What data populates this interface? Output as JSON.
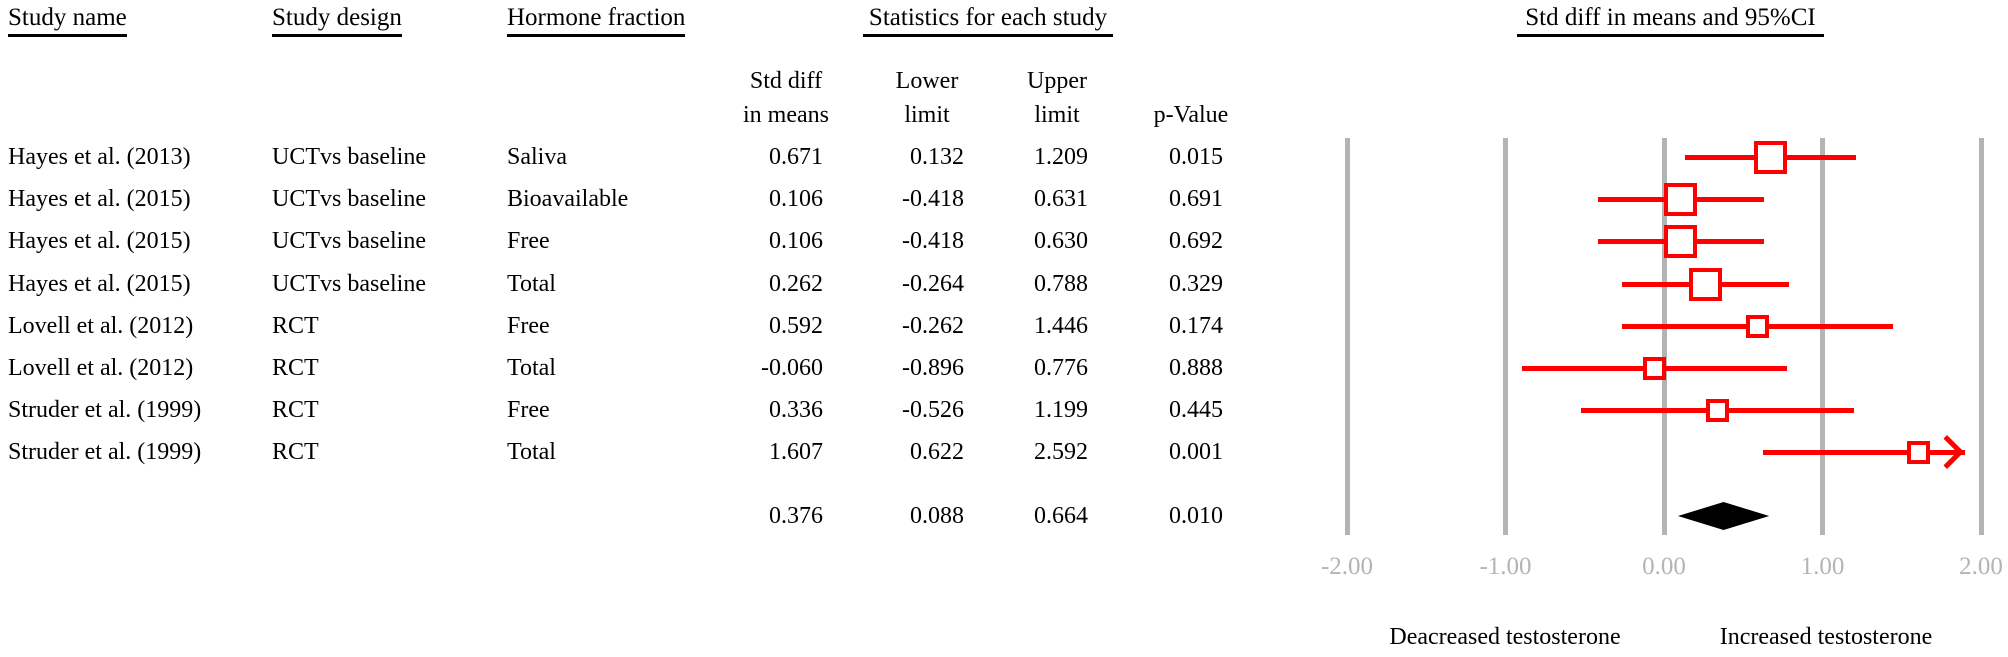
{
  "table": {
    "col_headers": {
      "study_name": "Study name",
      "study_design": "Study design",
      "hormone_fraction": "Hormone fraction",
      "statistics_group": "Statistics for each study"
    },
    "stat_headers": {
      "std_diff": "Std diff\nin means",
      "lower": "Lower\nlimit",
      "upper": "Upper\nlimit",
      "p_value": "p-Value"
    }
  },
  "chart_data": {
    "type": "forest",
    "title": "Std diff in means and 95%CI",
    "axis": {
      "min": -2,
      "max": 2,
      "ticks": [
        {
          "value": -2,
          "label": "-2.00"
        },
        {
          "value": -1,
          "label": "-1.00"
        },
        {
          "value": 0,
          "label": "0.00"
        },
        {
          "value": 1,
          "label": "1.00"
        },
        {
          "value": 2,
          "label": "2.00"
        }
      ]
    },
    "rows": [
      {
        "name": "Hayes et al. (2013)",
        "design": "UCTvs baseline",
        "fraction": "Saliva",
        "std_diff": "0.671",
        "lower": "0.132",
        "upper": "1.209",
        "p": "0.015",
        "weight": "large"
      },
      {
        "name": "Hayes et al. (2015)",
        "design": "UCTvs baseline",
        "fraction": "Bioavailable",
        "std_diff": "0.106",
        "lower": "-0.418",
        "upper": "0.631",
        "p": "0.691",
        "weight": "large"
      },
      {
        "name": "Hayes et al. (2015)",
        "design": "UCTvs baseline",
        "fraction": "Free",
        "std_diff": "0.106",
        "lower": "-0.418",
        "upper": "0.630",
        "p": "0.692",
        "weight": "large"
      },
      {
        "name": "Hayes et al. (2015)",
        "design": "UCTvs baseline",
        "fraction": "Total",
        "std_diff": "0.262",
        "lower": "-0.264",
        "upper": "0.788",
        "p": "0.329",
        "weight": "large"
      },
      {
        "name": "Lovell et al. (2012)",
        "design": "RCT",
        "fraction": "Free",
        "std_diff": "0.592",
        "lower": "-0.262",
        "upper": "1.446",
        "p": "0.174",
        "weight": "small"
      },
      {
        "name": "Lovell et al. (2012)",
        "design": "RCT",
        "fraction": "Total",
        "std_diff": "-0.060",
        "lower": "-0.896",
        "upper": "0.776",
        "p": "0.888",
        "weight": "small"
      },
      {
        "name": "Struder et al. (1999)",
        "design": "RCT",
        "fraction": "Free",
        "std_diff": "0.336",
        "lower": "-0.526",
        "upper": "1.199",
        "p": "0.445",
        "weight": "small"
      },
      {
        "name": "Struder et al. (1999)",
        "design": "RCT",
        "fraction": "Total",
        "std_diff": "1.607",
        "lower": "0.622",
        "upper": "2.592",
        "p": "0.001",
        "weight": "small"
      }
    ],
    "summary": {
      "std_diff": "0.376",
      "lower": "0.088",
      "upper": "0.664",
      "p": "0.010"
    },
    "footer": {
      "decreased": "Deacreased testosterone",
      "increased": "Increased testosterone"
    },
    "colors": {
      "marker": "#ff0000",
      "summary_diamond": "#000000",
      "gridline": "#b4b4b4",
      "tick_label": "#b4b4b4"
    }
  }
}
